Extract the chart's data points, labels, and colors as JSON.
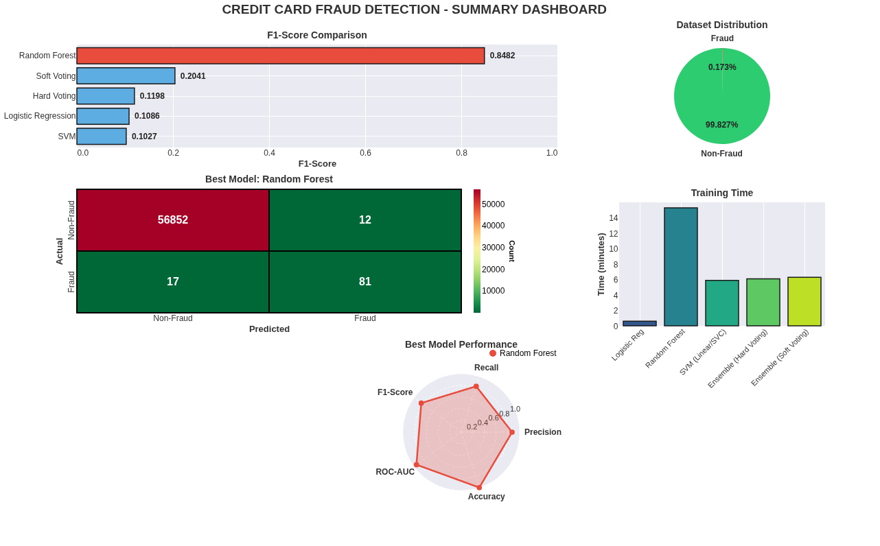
{
  "chart_data": [
    {
      "type": "other",
      "title": "CREDIT CARD FRAUD DETECTION - SUMMARY DASHBOARD"
    },
    {
      "type": "bar",
      "orientation": "horizontal",
      "title": "F1-Score Comparison",
      "xlabel": "F1-Score",
      "categories": [
        "Random Forest",
        "Soft Voting",
        "Hard Voting",
        "Logistic Regression",
        "SVM"
      ],
      "values": [
        0.8482,
        0.2041,
        0.1198,
        0.1086,
        0.1027
      ],
      "colors": [
        "#e74c3c",
        "#5dade2",
        "#5dade2",
        "#5dade2",
        "#5dade2"
      ],
      "xlim": [
        0,
        1
      ],
      "xticks": [
        {
          "value": 0,
          "label": "0.0"
        },
        0.2,
        0.4,
        0.6,
        0.8,
        {
          "value": 1,
          "label": "1.0"
        }
      ],
      "grid": true,
      "data_labels": true
    },
    {
      "type": "pie",
      "title": "Dataset Distribution",
      "categories": [
        "Fraud",
        "Non-Fraud"
      ],
      "values": [
        0.173,
        99.827
      ],
      "colors": [
        "#e74c3c",
        "#2ecc71"
      ],
      "value_labels": [
        "0.173%",
        "99.827%"
      ]
    },
    {
      "type": "heatmap",
      "title": "Best Model: Random Forest",
      "xlabel": "Predicted",
      "ylabel": "Actual",
      "clabel": "Count",
      "categories": [
        "Non-Fraud",
        "Fraud"
      ],
      "y_categories": [
        "Non-Fraud",
        "Fraud"
      ],
      "cells": [
        [
          56852,
          12
        ],
        [
          17,
          81
        ]
      ],
      "clim": [
        12,
        56852
      ],
      "cticks": [
        10000,
        20000,
        30000,
        40000,
        50000
      ],
      "data_labels": true
    },
    {
      "type": "bar",
      "title": "Training Time",
      "ylabel": "Time (minutes)",
      "categories": [
        "Logistic Reg",
        "Random Forest",
        "SVM (Linear/SVC)",
        "Ensemble (Hard Voting)",
        "Ensemble (Soft Voting)"
      ],
      "values": [
        0.6,
        15.3,
        5.9,
        6.1,
        6.3
      ],
      "colors": [
        "#31578c",
        "#26828e",
        "#22a884",
        "#5ec962",
        "#bddf26"
      ],
      "ylim": [
        0,
        16
      ],
      "yticks": [
        0,
        2,
        4,
        6,
        8,
        10,
        12,
        14
      ],
      "grid": "x"
    },
    {
      "type": "radar",
      "title": "Best Model Performance",
      "categories": [
        "Recall",
        "Precision",
        "Accuracy",
        "ROC-AUC",
        "F1-Score"
      ],
      "series": [
        {
          "name": "Random Forest",
          "color": "#e74c3c",
          "values": [
            0.827,
            0.871,
            0.999,
            0.95,
            0.848
          ]
        }
      ],
      "ylim": [
        0,
        1
      ],
      "yticks": [
        0.2,
        0.4,
        0.6,
        {
          "value": 0.8,
          "label": "0.8"
        },
        {
          "value": 1,
          "label": "1.0"
        }
      ],
      "legend": "top right",
      "marker": "circle",
      "line_style": "solid",
      "grid": true
    }
  ]
}
